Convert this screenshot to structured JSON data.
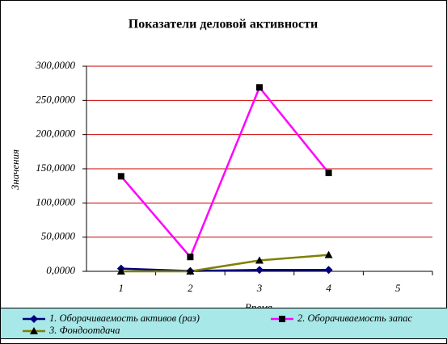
{
  "chart_data": {
    "type": "line",
    "title": "Показатели деловой активности",
    "x_label": "Время",
    "y_label": "Значения",
    "categories": [
      "1",
      "2",
      "3",
      "4",
      "5"
    ],
    "ylim": [
      0,
      300
    ],
    "yticks": [
      {
        "value": 0,
        "label": "0,0000"
      },
      {
        "value": 50,
        "label": "50,0000"
      },
      {
        "value": 100,
        "label": "100,0000"
      },
      {
        "value": 150,
        "label": "150,0000"
      },
      {
        "value": 200,
        "label": "200,0000"
      },
      {
        "value": 250,
        "label": "250,0000"
      },
      {
        "value": 300,
        "label": "300,0000"
      }
    ],
    "grid": true,
    "grid_color": "#cc0000",
    "series": [
      {
        "name": "1. Оборачиваемость активов (раз)",
        "color": "#000080",
        "marker": "diamond",
        "values": [
          4,
          0.5,
          2,
          2,
          null
        ]
      },
      {
        "name": "2. Оборачиваемость запас",
        "color": "#ff00ff",
        "marker": "square",
        "values": [
          139,
          21,
          269,
          144,
          null
        ]
      },
      {
        "name": "3. Фондоотдача",
        "color": "#808000",
        "marker": "triangle",
        "values": [
          0,
          0,
          16,
          24,
          null
        ]
      }
    ]
  }
}
